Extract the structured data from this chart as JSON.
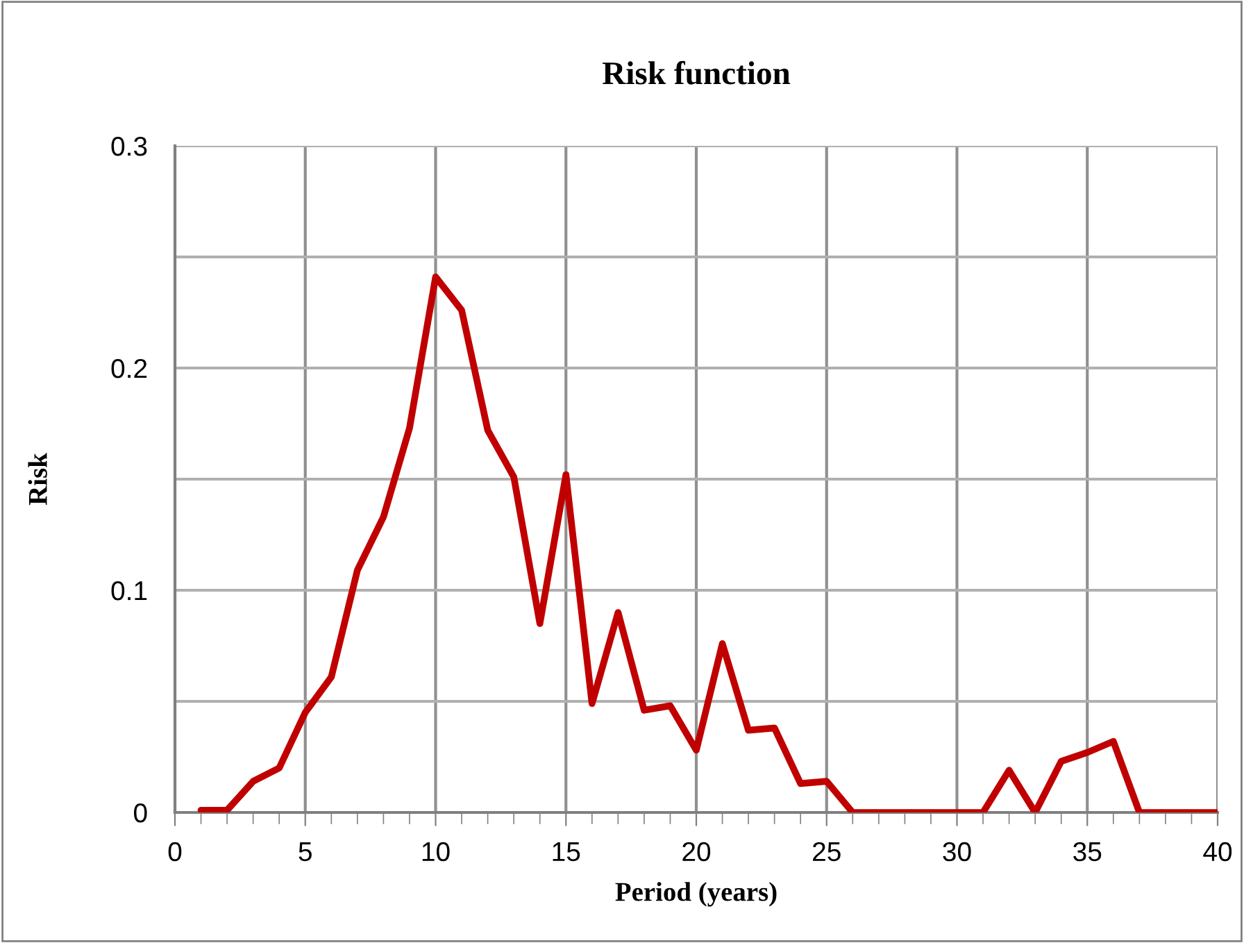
{
  "chart_data": {
    "type": "line",
    "title": "Risk function",
    "xlabel": "Period (years)",
    "ylabel": "Risk",
    "x": [
      1,
      2,
      3,
      4,
      5,
      6,
      7,
      8,
      9,
      10,
      11,
      12,
      13,
      14,
      15,
      16,
      17,
      18,
      19,
      20,
      21,
      22,
      23,
      24,
      25,
      26,
      27,
      28,
      29,
      30,
      31,
      32,
      33,
      34,
      35,
      36,
      37,
      38,
      39,
      40
    ],
    "series": [
      {
        "color": "#c00000",
        "values": [
          0.001,
          0.001,
          0.014,
          0.02,
          0.045,
          0.061,
          0.109,
          0.133,
          0.173,
          0.241,
          0.226,
          0.172,
          0.151,
          0.085,
          0.152,
          0.049,
          0.09,
          0.046,
          0.048,
          0.028,
          0.076,
          0.037,
          0.038,
          0.013,
          0.014,
          0,
          0,
          0,
          0,
          0,
          0,
          0.019,
          0,
          0.023,
          0.027,
          0.032,
          0,
          0,
          0,
          0
        ]
      }
    ],
    "xlim": [
      0,
      40
    ],
    "ylim": [
      0,
      0.3
    ],
    "xticks": [
      0,
      {
        "value": 1,
        "label": null
      },
      {
        "value": 2,
        "label": null
      },
      {
        "value": 3,
        "label": null
      },
      {
        "value": 4,
        "label": null
      },
      5,
      {
        "value": 6,
        "label": null
      },
      {
        "value": 7,
        "label": null
      },
      {
        "value": 8,
        "label": null
      },
      {
        "value": 9,
        "label": null
      },
      10,
      {
        "value": 11,
        "label": null
      },
      {
        "value": 12,
        "label": null
      },
      {
        "value": 13,
        "label": null
      },
      {
        "value": 14,
        "label": null
      },
      15,
      {
        "value": 16,
        "label": null
      },
      {
        "value": 17,
        "label": null
      },
      {
        "value": 18,
        "label": null
      },
      {
        "value": 19,
        "label": null
      },
      20,
      {
        "value": 21,
        "label": null
      },
      {
        "value": 22,
        "label": null
      },
      {
        "value": 23,
        "label": null
      },
      {
        "value": 24,
        "label": null
      },
      25,
      {
        "value": 26,
        "label": null
      },
      {
        "value": 27,
        "label": null
      },
      {
        "value": 28,
        "label": null
      },
      {
        "value": 29,
        "label": null
      },
      30,
      {
        "value": 31,
        "label": null
      },
      {
        "value": 32,
        "label": null
      },
      {
        "value": 33,
        "label": null
      },
      {
        "value": 34,
        "label": null
      },
      35,
      {
        "value": 36,
        "label": null
      },
      {
        "value": 37,
        "label": null
      },
      {
        "value": 38,
        "label": null
      },
      {
        "value": 39,
        "label": null
      },
      40
    ],
    "yticks": [
      0,
      {
        "value": 0.05,
        "label": null
      },
      0.1,
      {
        "value": 0.15,
        "label": null
      },
      0.2,
      {
        "value": 0.25,
        "label": null
      },
      0.3
    ],
    "grid": true,
    "legend": false,
    "marker": "none",
    "line_style": "solid"
  }
}
